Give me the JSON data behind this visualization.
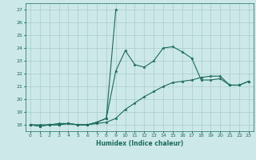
{
  "xlabel": "Humidex (Indice chaleur)",
  "bg_color": "#cce8e8",
  "grid_color": "#aacccc",
  "line_color": "#1a6b5a",
  "x_values": [
    0,
    1,
    2,
    3,
    4,
    5,
    6,
    7,
    8,
    9,
    10,
    11,
    12,
    13,
    14,
    15,
    16,
    17,
    18,
    19,
    20,
    21,
    22,
    23
  ],
  "line1_y": [
    18,
    17.9,
    18.0,
    18.1,
    18.1,
    18.0,
    18.0,
    18.2,
    18.5,
    22.2,
    23.8,
    22.7,
    22.5,
    23.0,
    24.0,
    24.1,
    23.7,
    23.2,
    21.5,
    21.5,
    21.6,
    21.1,
    21.1,
    21.4
  ],
  "line2_y": [
    18,
    17.9,
    18.0,
    18.0,
    18.1,
    18.0,
    18.0,
    18.2,
    18.5,
    27.0,
    null,
    null,
    null,
    null,
    null,
    null,
    null,
    null,
    null,
    null,
    null,
    null,
    null,
    null
  ],
  "line3_y": [
    18,
    18.0,
    18.0,
    18.0,
    18.1,
    18.0,
    18.0,
    18.1,
    18.2,
    18.5,
    19.2,
    19.7,
    20.2,
    20.6,
    21.0,
    21.3,
    21.4,
    21.5,
    21.7,
    21.8,
    21.8,
    21.1,
    21.1,
    21.4
  ],
  "ylim_min": 17.5,
  "ylim_max": 27.5,
  "xlim_min": -0.5,
  "xlim_max": 23.5,
  "yticks": [
    18,
    19,
    20,
    21,
    22,
    23,
    24,
    25,
    26,
    27
  ],
  "xticks": [
    0,
    1,
    2,
    3,
    4,
    5,
    6,
    7,
    8,
    9,
    10,
    11,
    12,
    13,
    14,
    15,
    16,
    17,
    18,
    19,
    20,
    21,
    22,
    23
  ]
}
